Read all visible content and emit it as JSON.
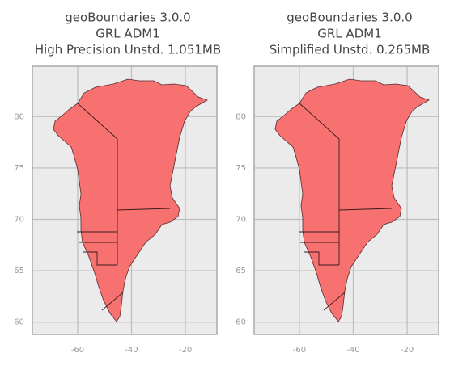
{
  "chart_data": [
    {
      "type": "map",
      "title": [
        "geoBoundaries 3.0.0",
        "GRL ADM1",
        "High Precision Unstd. 1.051MB"
      ],
      "xlim": [
        -76.8,
        -8.3
      ],
      "ylim": [
        58.8,
        84.9
      ],
      "xticks": [
        -60,
        -40,
        -20
      ],
      "yticks": [
        60,
        65,
        70,
        75,
        80
      ],
      "grid": true,
      "color": "#f87171"
    },
    {
      "type": "map",
      "title": [
        "geoBoundaries 3.0.0",
        "GRL ADM1",
        "Simplified Unstd. 0.265MB"
      ],
      "xlim": [
        -76.8,
        -8.3
      ],
      "ylim": [
        58.8,
        84.9
      ],
      "xticks": [
        -60,
        -40,
        -20
      ],
      "yticks": [
        60,
        65,
        70,
        75,
        80
      ],
      "grid": true,
      "color": "#f87171"
    }
  ]
}
